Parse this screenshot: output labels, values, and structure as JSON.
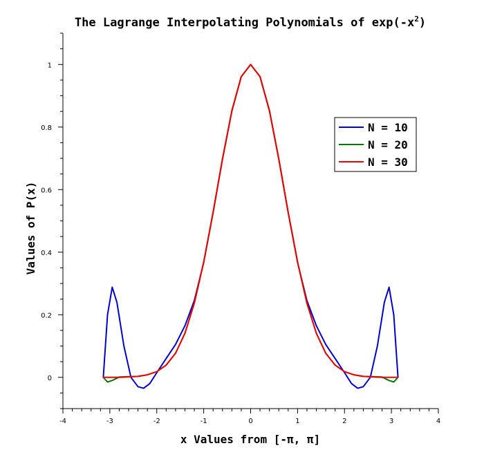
{
  "chart_data": {
    "type": "line",
    "title": "The Lagrange Interpolating Polynomials of exp(-x",
    "title_superscript": "2",
    "title_suffix": ")",
    "xlabel": "x Values from [-π, π]",
    "ylabel": "Values of P(x)",
    "xlim": [
      -4,
      4
    ],
    "ylim": [
      -0.1,
      1.1
    ],
    "x_ticks": [
      "-4",
      "-3",
      "-2",
      "-1",
      "0",
      "1",
      "2",
      "3",
      "4"
    ],
    "y_ticks": [
      "0",
      "0.2",
      "0.4",
      "0.6",
      "0.8",
      "1"
    ],
    "grid": false,
    "legend_position": "top-right",
    "series": [
      {
        "name": "N = 10",
        "color": "#0000cc",
        "x": [
          -3.14,
          -3.05,
          -2.95,
          -2.85,
          -2.7,
          -2.55,
          -2.4,
          -2.28,
          -2.15,
          -2.0,
          -1.8,
          -1.6,
          -1.4,
          -1.2,
          -1.0,
          -0.8,
          -0.6,
          -0.4,
          -0.2,
          0,
          0.2,
          0.4,
          0.6,
          0.8,
          1.0,
          1.2,
          1.4,
          1.6,
          1.8,
          2.0,
          2.15,
          2.28,
          2.4,
          2.55,
          2.7,
          2.85,
          2.95,
          3.05,
          3.14
        ],
        "y": [
          0.0,
          0.2,
          0.288,
          0.24,
          0.1,
          0.0,
          -0.03,
          -0.035,
          -0.02,
          0.015,
          0.06,
          0.105,
          0.165,
          0.245,
          0.367,
          0.527,
          0.698,
          0.852,
          0.961,
          1.0,
          0.961,
          0.852,
          0.698,
          0.527,
          0.367,
          0.245,
          0.165,
          0.105,
          0.06,
          0.015,
          -0.02,
          -0.035,
          -0.03,
          0.0,
          0.1,
          0.24,
          0.288,
          0.2,
          0.0
        ]
      },
      {
        "name": "N = 20",
        "color": "#007700",
        "x": [
          -3.14,
          -3.05,
          -2.95,
          -2.8,
          -2.6,
          -2.4,
          -2.2,
          -2.0,
          -1.8,
          -1.6,
          -1.4,
          -1.2,
          -1.0,
          -0.8,
          -0.6,
          -0.4,
          -0.2,
          0,
          0.2,
          0.4,
          0.6,
          0.8,
          1.0,
          1.2,
          1.4,
          1.6,
          1.8,
          2.0,
          2.2,
          2.4,
          2.6,
          2.8,
          2.95,
          3.05,
          3.14
        ],
        "y": [
          0.0,
          -0.015,
          -0.01,
          0.001,
          0.002,
          0.003,
          0.008,
          0.018,
          0.039,
          0.077,
          0.141,
          0.237,
          0.368,
          0.527,
          0.698,
          0.852,
          0.961,
          1.0,
          0.961,
          0.852,
          0.698,
          0.527,
          0.368,
          0.237,
          0.141,
          0.077,
          0.039,
          0.018,
          0.008,
          0.003,
          0.002,
          0.001,
          -0.01,
          -0.015,
          0.0
        ]
      },
      {
        "name": "N = 30",
        "color": "#ee0000",
        "x": [
          -3.14,
          -3.0,
          -2.8,
          -2.6,
          -2.4,
          -2.2,
          -2.0,
          -1.8,
          -1.6,
          -1.4,
          -1.2,
          -1.0,
          -0.8,
          -0.6,
          -0.4,
          -0.2,
          0,
          0.2,
          0.4,
          0.6,
          0.8,
          1.0,
          1.2,
          1.4,
          1.6,
          1.8,
          2.0,
          2.2,
          2.4,
          2.6,
          2.8,
          3.0,
          3.14
        ],
        "y": [
          0.0,
          0.0,
          0.0,
          0.001,
          0.003,
          0.008,
          0.018,
          0.039,
          0.077,
          0.141,
          0.237,
          0.368,
          0.527,
          0.698,
          0.852,
          0.961,
          1.0,
          0.961,
          0.852,
          0.698,
          0.527,
          0.368,
          0.237,
          0.141,
          0.077,
          0.039,
          0.018,
          0.008,
          0.003,
          0.001,
          0.0,
          0.0,
          0.0
        ]
      }
    ]
  }
}
